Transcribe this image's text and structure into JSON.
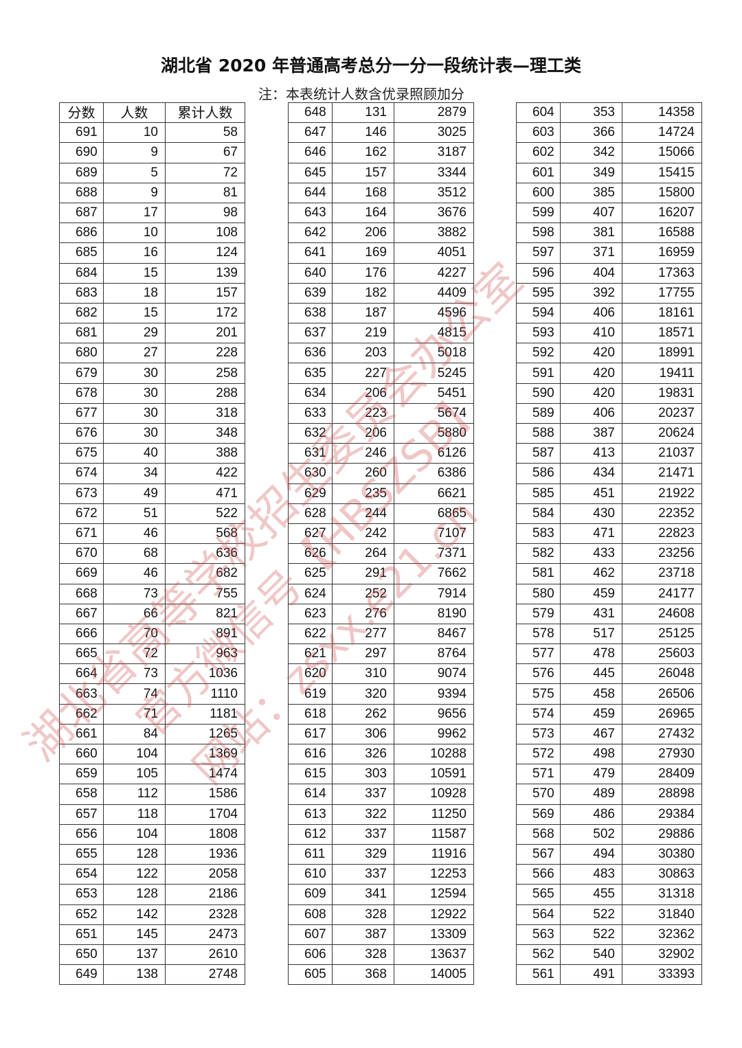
{
  "title": "湖北省 2020 年普通高考总分一分一段统计表—理工类",
  "note": "注：本表统计人数含优录照顾加分",
  "headers": [
    "分数",
    "人数",
    "累计人数"
  ],
  "watermark": [
    "湖北省高等学校招生委员会办公室",
    "官方微信号【HBSZSB】",
    "网站：zsxx.e21.cn"
  ],
  "watermark_color": "#cd5050",
  "tables": [
    [
      [
        691,
        10,
        58
      ],
      [
        690,
        9,
        67
      ],
      [
        689,
        5,
        72
      ],
      [
        688,
        9,
        81
      ],
      [
        687,
        17,
        98
      ],
      [
        686,
        10,
        108
      ],
      [
        685,
        16,
        124
      ],
      [
        684,
        15,
        139
      ],
      [
        683,
        18,
        157
      ],
      [
        682,
        15,
        172
      ],
      [
        681,
        29,
        201
      ],
      [
        680,
        27,
        228
      ],
      [
        679,
        30,
        258
      ],
      [
        678,
        30,
        288
      ],
      [
        677,
        30,
        318
      ],
      [
        676,
        30,
        348
      ],
      [
        675,
        40,
        388
      ],
      [
        674,
        34,
        422
      ],
      [
        673,
        49,
        471
      ],
      [
        672,
        51,
        522
      ],
      [
        671,
        46,
        568
      ],
      [
        670,
        68,
        636
      ],
      [
        669,
        46,
        682
      ],
      [
        668,
        73,
        755
      ],
      [
        667,
        66,
        821
      ],
      [
        666,
        70,
        891
      ],
      [
        665,
        72,
        963
      ],
      [
        664,
        73,
        1036
      ],
      [
        663,
        74,
        1110
      ],
      [
        662,
        71,
        1181
      ],
      [
        661,
        84,
        1265
      ],
      [
        660,
        104,
        1369
      ],
      [
        659,
        105,
        1474
      ],
      [
        658,
        112,
        1586
      ],
      [
        657,
        118,
        1704
      ],
      [
        656,
        104,
        1808
      ],
      [
        655,
        128,
        1936
      ],
      [
        654,
        122,
        2058
      ],
      [
        653,
        128,
        2186
      ],
      [
        652,
        142,
        2328
      ],
      [
        651,
        145,
        2473
      ],
      [
        650,
        137,
        2610
      ],
      [
        649,
        138,
        2748
      ]
    ],
    [
      [
        648,
        131,
        2879
      ],
      [
        647,
        146,
        3025
      ],
      [
        646,
        162,
        3187
      ],
      [
        645,
        157,
        3344
      ],
      [
        644,
        168,
        3512
      ],
      [
        643,
        164,
        3676
      ],
      [
        642,
        206,
        3882
      ],
      [
        641,
        169,
        4051
      ],
      [
        640,
        176,
        4227
      ],
      [
        639,
        182,
        4409
      ],
      [
        638,
        187,
        4596
      ],
      [
        637,
        219,
        4815
      ],
      [
        636,
        203,
        5018
      ],
      [
        635,
        227,
        5245
      ],
      [
        634,
        206,
        5451
      ],
      [
        633,
        223,
        5674
      ],
      [
        632,
        206,
        5880
      ],
      [
        631,
        246,
        6126
      ],
      [
        630,
        260,
        6386
      ],
      [
        629,
        235,
        6621
      ],
      [
        628,
        244,
        6865
      ],
      [
        627,
        242,
        7107
      ],
      [
        626,
        264,
        7371
      ],
      [
        625,
        291,
        7662
      ],
      [
        624,
        252,
        7914
      ],
      [
        623,
        276,
        8190
      ],
      [
        622,
        277,
        8467
      ],
      [
        621,
        297,
        8764
      ],
      [
        620,
        310,
        9074
      ],
      [
        619,
        320,
        9394
      ],
      [
        618,
        262,
        9656
      ],
      [
        617,
        306,
        9962
      ],
      [
        616,
        326,
        10288
      ],
      [
        615,
        303,
        10591
      ],
      [
        614,
        337,
        10928
      ],
      [
        613,
        322,
        11250
      ],
      [
        612,
        337,
        11587
      ],
      [
        611,
        329,
        11916
      ],
      [
        610,
        337,
        12253
      ],
      [
        609,
        341,
        12594
      ],
      [
        608,
        328,
        12922
      ],
      [
        607,
        387,
        13309
      ],
      [
        606,
        328,
        13637
      ],
      [
        605,
        368,
        14005
      ]
    ],
    [
      [
        604,
        353,
        14358
      ],
      [
        603,
        366,
        14724
      ],
      [
        602,
        342,
        15066
      ],
      [
        601,
        349,
        15415
      ],
      [
        600,
        385,
        15800
      ],
      [
        599,
        407,
        16207
      ],
      [
        598,
        381,
        16588
      ],
      [
        597,
        371,
        16959
      ],
      [
        596,
        404,
        17363
      ],
      [
        595,
        392,
        17755
      ],
      [
        594,
        406,
        18161
      ],
      [
        593,
        410,
        18571
      ],
      [
        592,
        420,
        18991
      ],
      [
        591,
        420,
        19411
      ],
      [
        590,
        420,
        19831
      ],
      [
        589,
        406,
        20237
      ],
      [
        588,
        387,
        20624
      ],
      [
        587,
        413,
        21037
      ],
      [
        586,
        434,
        21471
      ],
      [
        585,
        451,
        21922
      ],
      [
        584,
        430,
        22352
      ],
      [
        583,
        471,
        22823
      ],
      [
        582,
        433,
        23256
      ],
      [
        581,
        462,
        23718
      ],
      [
        580,
        459,
        24177
      ],
      [
        579,
        431,
        24608
      ],
      [
        578,
        517,
        25125
      ],
      [
        577,
        478,
        25603
      ],
      [
        576,
        445,
        26048
      ],
      [
        575,
        458,
        26506
      ],
      [
        574,
        459,
        26965
      ],
      [
        573,
        467,
        27432
      ],
      [
        572,
        498,
        27930
      ],
      [
        571,
        479,
        28409
      ],
      [
        570,
        489,
        28898
      ],
      [
        569,
        486,
        29384
      ],
      [
        568,
        502,
        29886
      ],
      [
        567,
        494,
        30380
      ],
      [
        566,
        483,
        30863
      ],
      [
        565,
        455,
        31318
      ],
      [
        564,
        522,
        31840
      ],
      [
        563,
        522,
        32362
      ],
      [
        562,
        540,
        32902
      ],
      [
        561,
        491,
        33393
      ]
    ]
  ]
}
